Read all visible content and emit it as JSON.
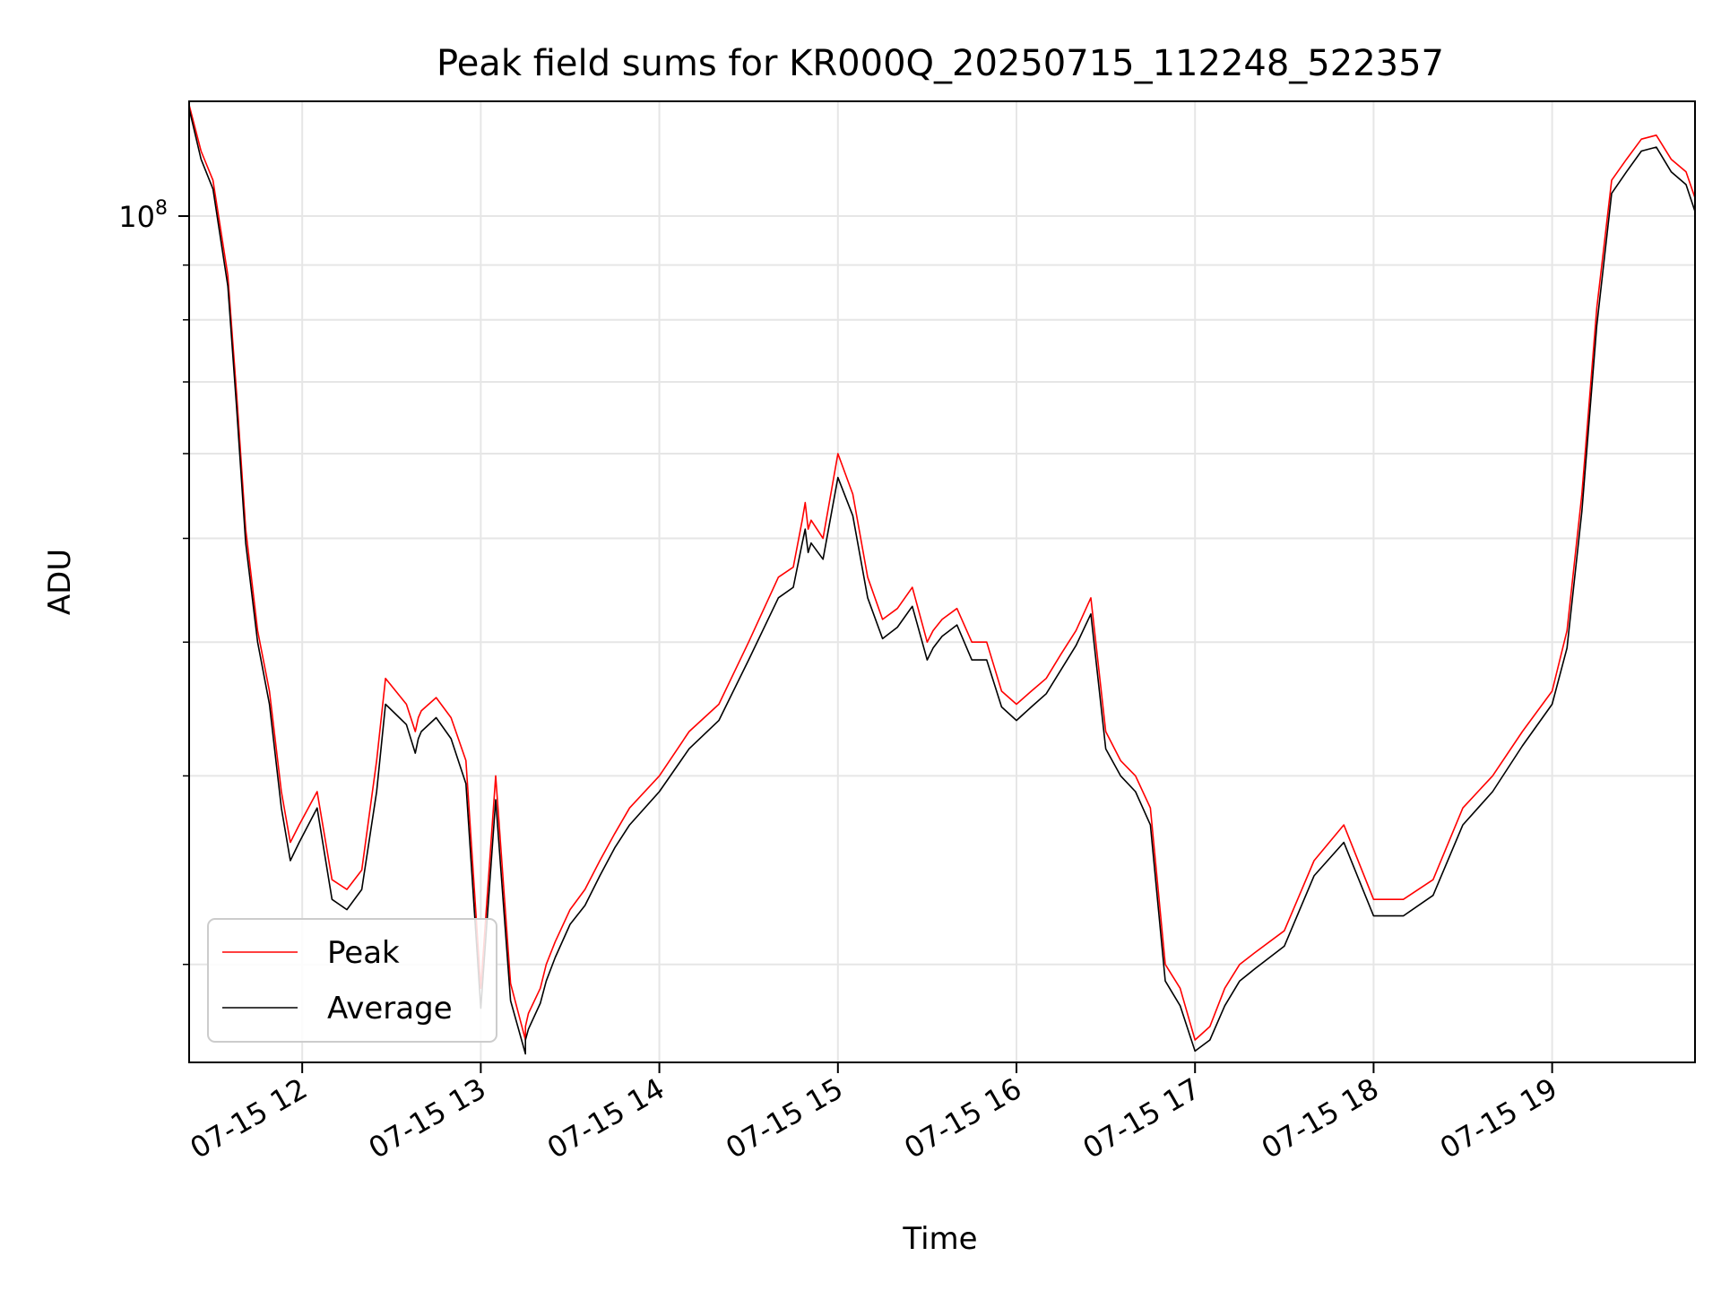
{
  "chart_data": {
    "type": "line",
    "title": "Peak field sums for KR000Q_20250715_112248_522357",
    "xlabel": "Time",
    "ylabel": "ADU",
    "y_scale": "log",
    "x_tick_labels": [
      "07-15 12",
      "07-15 13",
      "07-15 14",
      "07-15 15",
      "07-15 16",
      "07-15 17",
      "07-15 18",
      "07-15 19"
    ],
    "x_ticks": [
      "2025-07-15 12:00",
      "2025-07-15 13:00",
      "2025-07-15 14:00",
      "2025-07-15 15:00",
      "2025-07-15 16:00",
      "2025-07-15 17:00",
      "2025-07-15 18:00",
      "2025-07-15 19:00"
    ],
    "y_major_tick": {
      "value": 100000000,
      "label_base": "10",
      "label_exp": "8"
    },
    "y_minor_ticks": [
      20000000,
      30000000,
      40000000,
      50000000,
      60000000,
      70000000,
      80000000,
      90000000
    ],
    "xlim": [
      "2025-07-15 11:22",
      "2025-07-15 19:48"
    ],
    "ylim": [
      16200000,
      128000000
    ],
    "grid": true,
    "legend_position": "lower-left",
    "colors": {
      "peak": "#ff0000",
      "average": "#000000",
      "grid": "#e6e6e6"
    },
    "series": [
      {
        "name": "Peak",
        "x": [
          "2025-07-15 11:22",
          "2025-07-15 11:26",
          "2025-07-15 11:30",
          "2025-07-15 11:35",
          "2025-07-15 11:38",
          "2025-07-15 11:41",
          "2025-07-15 11:45",
          "2025-07-15 11:49",
          "2025-07-15 11:53",
          "2025-07-15 11:56",
          "2025-07-15 11:59",
          "2025-07-15 12:05",
          "2025-07-15 12:10",
          "2025-07-15 12:15",
          "2025-07-15 12:20",
          "2025-07-15 12:25",
          "2025-07-15 12:28",
          "2025-07-15 12:35",
          "2025-07-15 12:38",
          "2025-07-15 12:39",
          "2025-07-15 12:40",
          "2025-07-15 12:45",
          "2025-07-15 12:50",
          "2025-07-15 12:55",
          "2025-07-15 13:00",
          "2025-07-15 13:05",
          "2025-07-15 13:10",
          "2025-07-15 13:15",
          "2025-07-15 13:15",
          "2025-07-15 13:16",
          "2025-07-15 13:20",
          "2025-07-15 13:22",
          "2025-07-15 13:25",
          "2025-07-15 13:30",
          "2025-07-15 13:35",
          "2025-07-15 13:40",
          "2025-07-15 13:45",
          "2025-07-15 13:50",
          "2025-07-15 14:00",
          "2025-07-15 14:10",
          "2025-07-15 14:20",
          "2025-07-15 14:30",
          "2025-07-15 14:40",
          "2025-07-15 14:45",
          "2025-07-15 14:48",
          "2025-07-15 14:49",
          "2025-07-15 14:50",
          "2025-07-15 14:51",
          "2025-07-15 14:55",
          "2025-07-15 15:00",
          "2025-07-15 15:05",
          "2025-07-15 15:10",
          "2025-07-15 15:15",
          "2025-07-15 15:20",
          "2025-07-15 15:25",
          "2025-07-15 15:30",
          "2025-07-15 15:32",
          "2025-07-15 15:35",
          "2025-07-15 15:40",
          "2025-07-15 15:45",
          "2025-07-15 15:50",
          "2025-07-15 15:55",
          "2025-07-15 16:00",
          "2025-07-15 16:05",
          "2025-07-15 16:10",
          "2025-07-15 16:15",
          "2025-07-15 16:20",
          "2025-07-15 16:25",
          "2025-07-15 16:30",
          "2025-07-15 16:35",
          "2025-07-15 16:40",
          "2025-07-15 16:45",
          "2025-07-15 16:50",
          "2025-07-15 16:55",
          "2025-07-15 17:00",
          "2025-07-15 17:05",
          "2025-07-15 17:10",
          "2025-07-15 17:15",
          "2025-07-15 17:20",
          "2025-07-15 17:30",
          "2025-07-15 17:40",
          "2025-07-15 17:50",
          "2025-07-15 18:00",
          "2025-07-15 18:10",
          "2025-07-15 18:20",
          "2025-07-15 18:30",
          "2025-07-15 18:40",
          "2025-07-15 18:50",
          "2025-07-15 19:00",
          "2025-07-15 19:05",
          "2025-07-15 19:10",
          "2025-07-15 19:15",
          "2025-07-15 19:20",
          "2025-07-15 19:25",
          "2025-07-15 19:30",
          "2025-07-15 19:35",
          "2025-07-15 19:40",
          "2025-07-15 19:45",
          "2025-07-15 19:48"
        ],
        "y": [
          127000000,
          115000000,
          108000000,
          88000000,
          68000000,
          51000000,
          41000000,
          36000000,
          29000000,
          26000000,
          27000000,
          29000000,
          24000000,
          23500000,
          24500000,
          31000000,
          37000000,
          35000000,
          33000000,
          34000000,
          34500000,
          35500000,
          34000000,
          31000000,
          19000000,
          30000000,
          19200000,
          17000000,
          17500000,
          18000000,
          19000000,
          20000000,
          21000000,
          22500000,
          23500000,
          25000000,
          26500000,
          28000000,
          30000000,
          33000000,
          35000000,
          40000000,
          46000000,
          47000000,
          52000000,
          54000000,
          51000000,
          52000000,
          50000000,
          60000000,
          55000000,
          46000000,
          42000000,
          43000000,
          45000000,
          40000000,
          41000000,
          42000000,
          43000000,
          40000000,
          40000000,
          36000000,
          35000000,
          36000000,
          37000000,
          39000000,
          41000000,
          44000000,
          33000000,
          31000000,
          30000000,
          28000000,
          20000000,
          19000000,
          17000000,
          17500000,
          19000000,
          20000000,
          20500000,
          21500000,
          25000000,
          27000000,
          23000000,
          23000000,
          24000000,
          28000000,
          30000000,
          33000000,
          36000000,
          41000000,
          55000000,
          82000000,
          108000000,
          113000000,
          118000000,
          119000000,
          113000000,
          110000000,
          104000000
        ],
        "values": [
          127000000,
          115000000,
          108000000,
          88000000,
          68000000,
          51000000,
          41000000,
          36000000,
          29000000,
          26000000,
          27000000,
          29000000,
          24000000,
          23500000,
          24500000,
          31000000,
          37000000,
          35000000,
          33000000,
          34000000,
          34500000,
          35500000,
          34000000,
          31000000,
          19000000,
          30000000,
          19200000,
          17000000,
          17500000,
          18000000,
          19000000,
          20000000,
          21000000,
          22500000,
          23500000,
          25000000,
          26500000,
          28000000,
          30000000,
          33000000,
          35000000,
          40000000,
          46000000,
          47000000,
          52000000,
          54000000,
          51000000,
          52000000,
          50000000,
          60000000,
          55000000,
          46000000,
          42000000,
          43000000,
          45000000,
          40000000,
          41000000,
          42000000,
          43000000,
          40000000,
          40000000,
          36000000,
          35000000,
          36000000,
          37000000,
          39000000,
          41000000,
          44000000,
          33000000,
          31000000,
          30000000,
          28000000,
          20000000,
          19000000,
          17000000,
          17500000,
          19000000,
          20000000,
          20500000,
          21500000,
          25000000,
          27000000,
          23000000,
          23000000,
          24000000,
          28000000,
          30000000,
          33000000,
          36000000,
          41000000,
          55000000,
          82000000,
          108000000,
          113000000,
          118000000,
          119000000,
          113000000,
          110000000,
          104000000
        ]
      },
      {
        "name": "Average",
        "values": [
          126000000,
          113000000,
          106000000,
          86000000,
          66000000,
          49500000,
          40000000,
          35000000,
          28000000,
          25000000,
          26000000,
          28000000,
          23000000,
          22500000,
          23500000,
          29000000,
          35000000,
          33500000,
          31500000,
          32500000,
          33000000,
          34000000,
          32500000,
          29500000,
          18200000,
          28500000,
          18500000,
          16500000,
          17000000,
          17400000,
          18400000,
          19300000,
          20300000,
          21800000,
          22700000,
          24200000,
          25700000,
          27000000,
          29000000,
          31800000,
          33800000,
          38500000,
          44000000,
          45000000,
          49500000,
          51000000,
          48500000,
          49500000,
          47800000,
          57000000,
          52500000,
          44000000,
          40300000,
          41300000,
          43200000,
          38500000,
          39500000,
          40500000,
          41500000,
          38500000,
          38500000,
          34800000,
          33800000,
          34800000,
          35800000,
          37700000,
          39700000,
          42500000,
          31800000,
          30000000,
          29000000,
          27000000,
          19300000,
          18300000,
          16600000,
          17000000,
          18300000,
          19300000,
          19800000,
          20800000,
          24200000,
          26000000,
          22200000,
          22200000,
          23200000,
          27000000,
          29000000,
          32000000,
          35000000,
          39500000,
          53000000,
          79000000,
          105000000,
          110000000,
          115000000,
          116000000,
          110000000,
          107000000,
          101000000
        ]
      }
    ]
  }
}
